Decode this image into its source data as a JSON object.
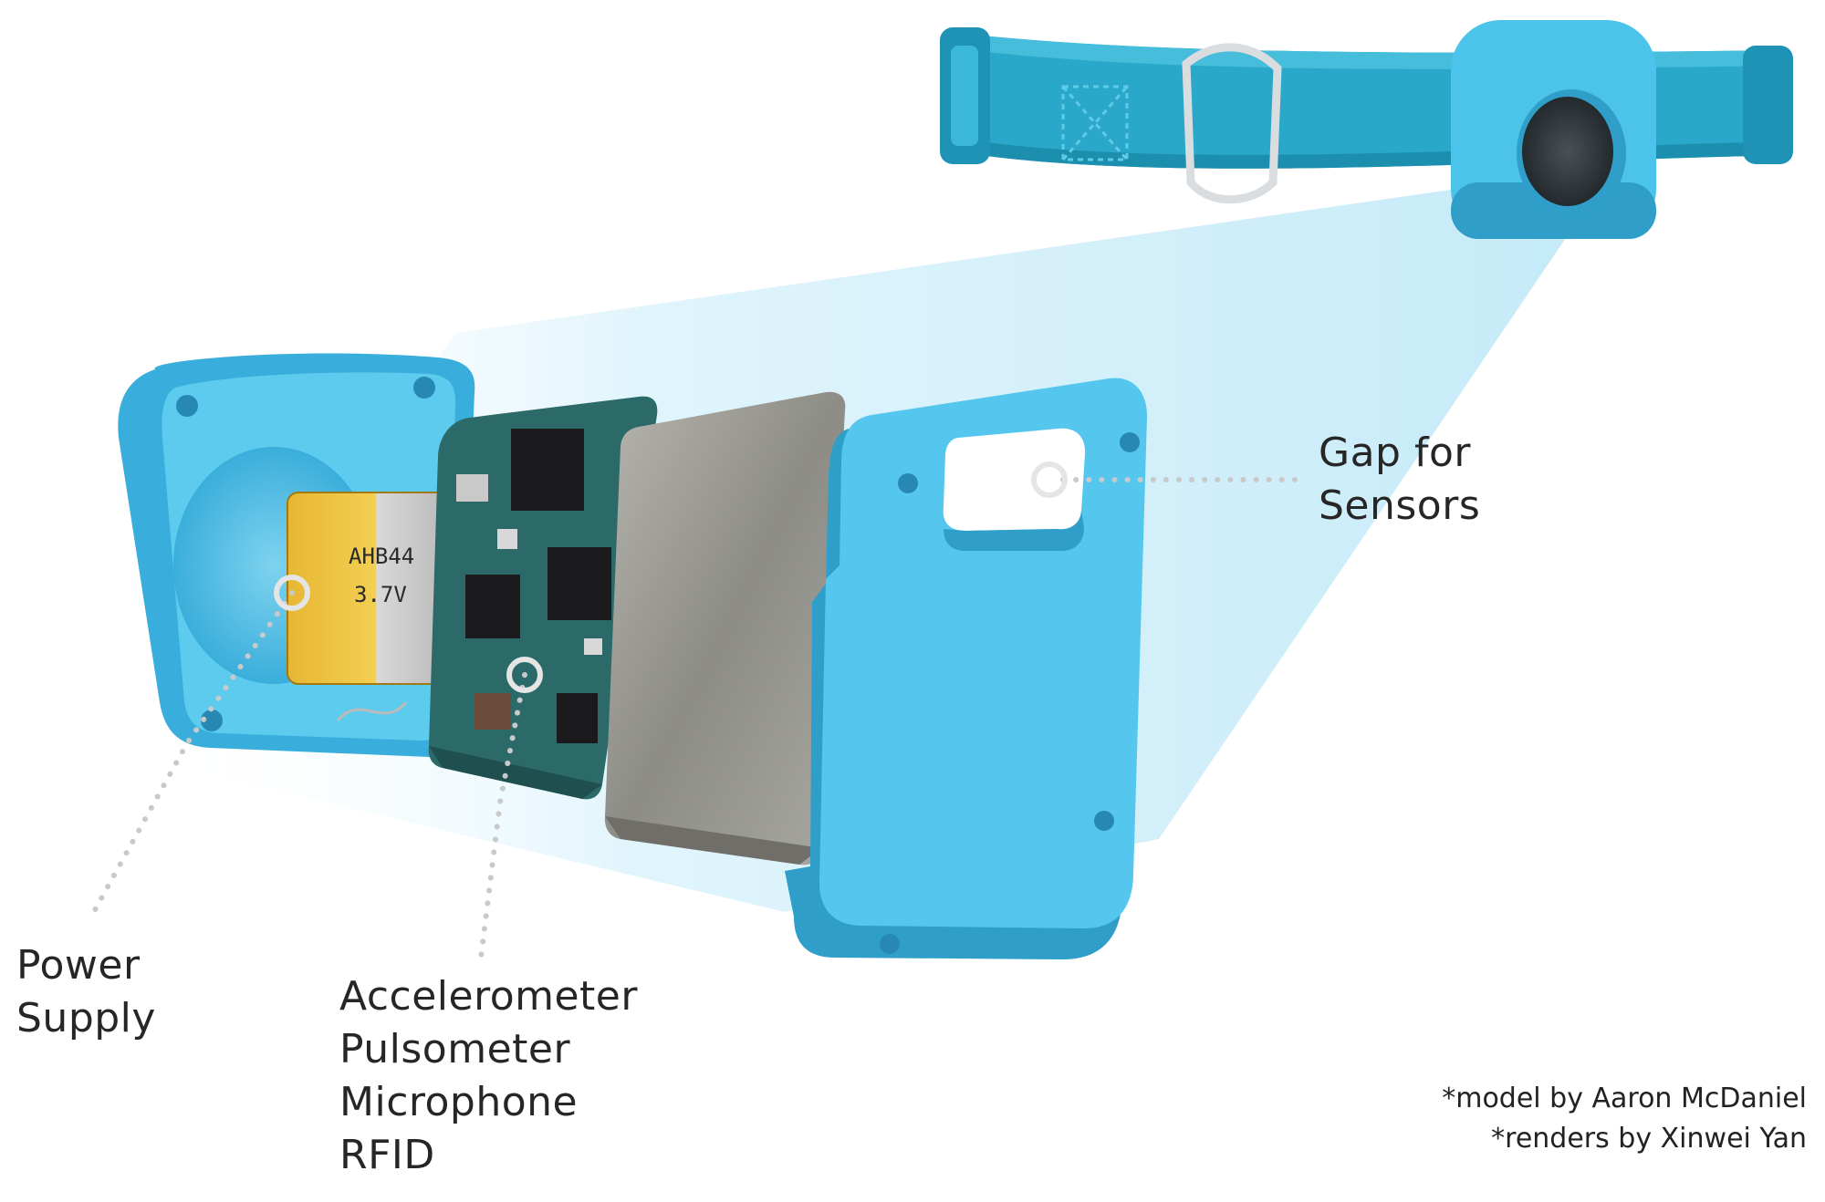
{
  "colors": {
    "housing_blue": "#4cc3ea",
    "housing_dark": "#2d9ec8",
    "collar_blue": "#2aa8c9",
    "beam_blue": "#cdeefa",
    "board_green": "#2d6b6a",
    "plate_gray": "#8f8f8a",
    "battery_gold": "#d8a628",
    "label_text": "#262626"
  },
  "icons": {
    "callout_marker": "ring-marker-icon",
    "leader": "dotted-leader-line"
  },
  "battery": {
    "model": "AHB44",
    "voltage": "3.7V"
  },
  "labels": {
    "power_supply": [
      "Power",
      "Supply"
    ],
    "circuit_board": [
      "Accelerometer",
      "Pulsometer",
      "Microphone",
      "RFID"
    ],
    "gap_for_sensors": [
      "Gap for",
      "Sensors"
    ]
  },
  "credits": {
    "model": "*model by Aaron McDaniel",
    "renders": "*renders by Xinwei Yan"
  }
}
